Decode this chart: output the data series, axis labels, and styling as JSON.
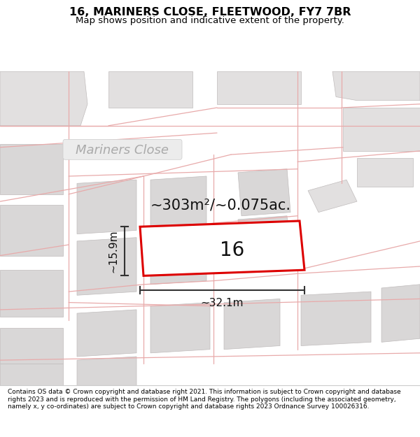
{
  "title": "16, MARINERS CLOSE, FLEETWOOD, FY7 7BR",
  "subtitle": "Map shows position and indicative extent of the property.",
  "title_fontsize": 11.5,
  "subtitle_fontsize": 9.5,
  "footer_text": "Contains OS data © Crown copyright and database right 2021. This information is subject to Crown copyright and database rights 2023 and is reproduced with the permission of HM Land Registry. The polygons (including the associated geometry, namely x, y co-ordinates) are subject to Crown copyright and database rights 2023 Ordnance Survey 100026316.",
  "map_bg": "#f2f0f0",
  "plot_outline_color": "#dd0000",
  "area_text": "~303m²/~0.075ac.",
  "area_fontsize": 15,
  "width_label": "~32.1m",
  "height_label": "~15.9m",
  "street_label": "Mariners Close",
  "street_fontsize": 13,
  "plot_number": "16",
  "number_fontsize": 20,
  "dim_text_fontsize": 11,
  "gray_block": "#d9d7d7",
  "gray_block2": "#e2e0e0",
  "pink_line": "#e8aaaa",
  "dim_color": "#333333"
}
